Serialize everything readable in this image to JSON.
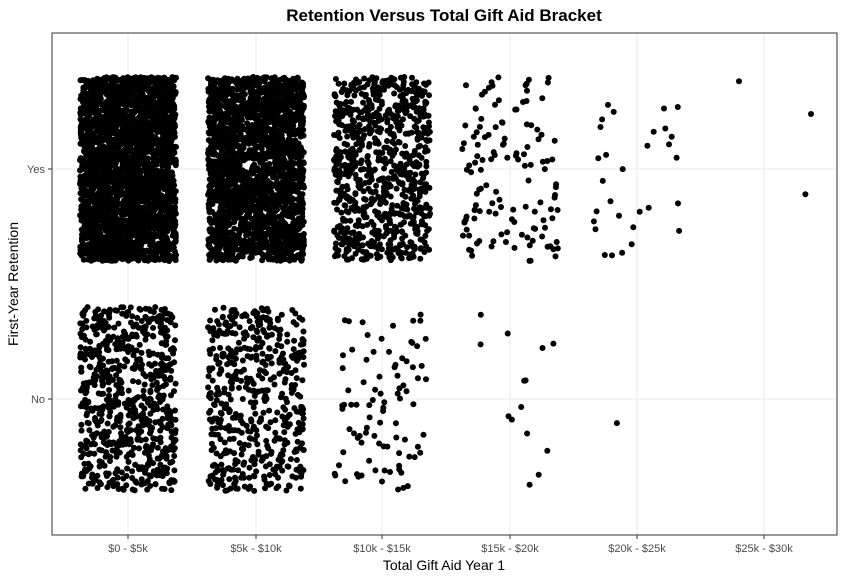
{
  "chart_data": {
    "type": "scatter",
    "title": "Retention Versus Total Gift Aid Bracket",
    "xlabel": "Total Gift Aid Year 1",
    "ylabel": "First-Year Retention",
    "x_categories": [
      "$0 - $5k",
      "$5k - $10k",
      "$10k - $15k",
      "$15k - $20k",
      "$20k - $25k",
      "$25k - $30k"
    ],
    "y_categories": [
      "No",
      "Yes"
    ],
    "jitter": true,
    "grid": true,
    "point_color": "#000000",
    "panel_border_color": "#333333",
    "grid_color": "#ebebeb",
    "series": [
      {
        "x": "$0 - $5k",
        "y": "Yes",
        "count": 2600
      },
      {
        "x": "$0 - $5k",
        "y": "No",
        "count": 700
      },
      {
        "x": "$5k - $10k",
        "y": "Yes",
        "count": 2300
      },
      {
        "x": "$5k - $10k",
        "y": "No",
        "count": 520
      },
      {
        "x": "$10k - $15k",
        "y": "Yes",
        "count": 820
      },
      {
        "x": "$10k - $15k",
        "y": "No",
        "count": 90
      },
      {
        "x": "$15k - $20k",
        "y": "Yes",
        "count": 130
      },
      {
        "x": "$15k - $20k",
        "y": "No",
        "count": 14
      },
      {
        "x": "$20k - $25k",
        "y": "Yes",
        "count": 30
      },
      {
        "x": "$20k - $25k",
        "y": "No",
        "count": 1
      },
      {
        "x": "$25k - $30k",
        "y": "Yes",
        "count": 3
      },
      {
        "x": "$25k - $30k",
        "y": "No",
        "count": 0
      }
    ]
  }
}
